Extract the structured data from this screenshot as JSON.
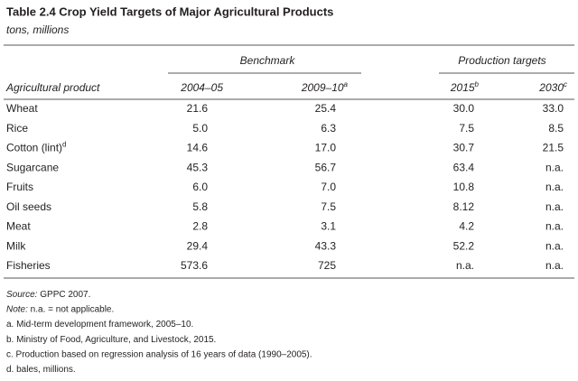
{
  "header": {
    "title": "Table 2.4  Crop Yield Targets of Major Agricultural Products",
    "subtitle": "tons, millions"
  },
  "table": {
    "groups": [
      "Benchmark",
      "Production targets"
    ],
    "columns": [
      {
        "text": "Agricultural product"
      },
      {
        "text": "2004–05"
      },
      {
        "text": "2009–10",
        "sup": "a"
      },
      {
        "text": "2015",
        "sup": "b"
      },
      {
        "text": "2030",
        "sup": "c"
      }
    ],
    "rows": [
      [
        {
          "text": "Wheat"
        },
        "21.6",
        "25.4",
        "30.0",
        "33.0"
      ],
      [
        {
          "text": "Rice"
        },
        "5.0",
        "6.3",
        "7.5",
        "8.5"
      ],
      [
        {
          "text": "Cotton (lint)",
          "sup": "d"
        },
        "14.6",
        "17.0",
        "30.7",
        "21.5"
      ],
      [
        {
          "text": "Sugarcane"
        },
        "45.3",
        "56.7",
        "63.4",
        "n.a."
      ],
      [
        {
          "text": "Fruits"
        },
        "6.0",
        "7.0",
        "10.8",
        "n.a."
      ],
      [
        {
          "text": "Oil seeds"
        },
        "5.8",
        "7.5",
        "8.12",
        "n.a."
      ],
      [
        {
          "text": "Meat"
        },
        "2.8",
        "3.1",
        "4.2",
        "n.a."
      ],
      [
        {
          "text": "Milk"
        },
        "29.4",
        "43.3",
        "52.2",
        "n.a."
      ],
      [
        {
          "text": "Fisheries"
        },
        "573.6",
        "725",
        "n.a.",
        "n.a."
      ]
    ]
  },
  "notes": [
    {
      "label": "Source:",
      "text": " GPPC 2007."
    },
    {
      "label": "Note:",
      "text": " n.a. = not applicable."
    },
    {
      "text": "a. Mid-term development framework, 2005–10."
    },
    {
      "text": "b. Ministry of Food, Agriculture, and Livestock, 2015."
    },
    {
      "text": "c. Production based on regression analysis of 16 years of data (1990–2005)."
    },
    {
      "text": "d. bales, millions."
    }
  ]
}
